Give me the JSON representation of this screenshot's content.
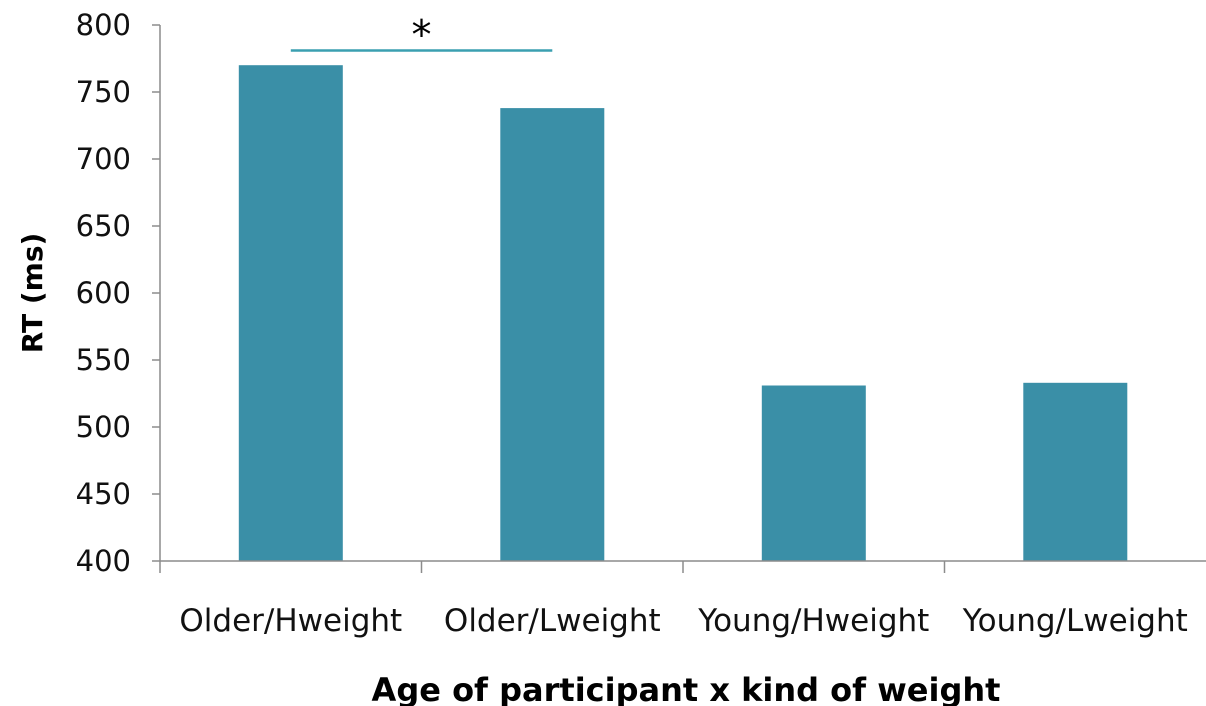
{
  "chart_data": {
    "type": "bar",
    "categories": [
      "Older/Hweight",
      "Older/Lweight",
      "Young/Hweight",
      "Young/Lweight"
    ],
    "values": [
      770,
      738,
      531,
      533
    ],
    "title": "",
    "xlabel": "Age of participant x kind of weight",
    "ylabel": "RT (ms)",
    "ylim": [
      400,
      800
    ],
    "yticks": [
      400,
      450,
      500,
      550,
      600,
      650,
      700,
      750,
      800
    ],
    "grid": false,
    "legend": "none",
    "bar_color": "#3A8FA7",
    "axis_color": "#8C8C8C",
    "significance": {
      "label": "*",
      "from_category": "Older/Hweight",
      "to_category": "Older/Lweight",
      "line_value": 781,
      "line_color": "#3A9FB0"
    }
  }
}
